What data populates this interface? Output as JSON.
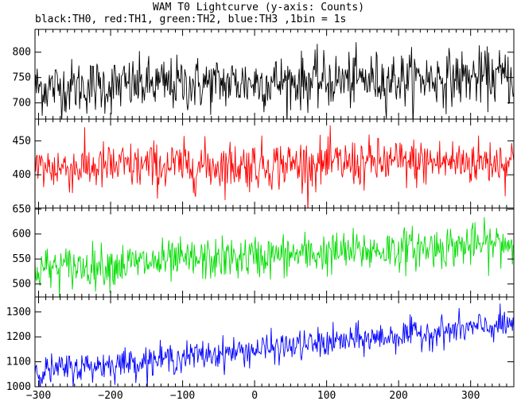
{
  "chart_data": {
    "type": "line",
    "title": "WAM T0 Lightcurve (y-axis: Counts)",
    "subtitle": "black:TH0, red:TH1, green:TH2, blue:TH3 ,1bin = 1s",
    "xlabel": "",
    "ylabel": "",
    "x_range": [
      -305,
      360
    ],
    "x_ticks": [
      -300,
      -200,
      -100,
      0,
      100,
      200,
      300
    ],
    "bin_seconds": 1,
    "grid": false,
    "panels": [
      {
        "series": "TH0",
        "color": "#000000",
        "ylim": [
          668,
          845
        ],
        "yticks": [
          700,
          750,
          800
        ],
        "trend": {
          "start": 730,
          "end": 752
        },
        "noise_sd": 27
      },
      {
        "series": "TH1",
        "color": "#ff0000",
        "ylim": [
          351,
          482
        ],
        "yticks": [
          400,
          450
        ],
        "trend": {
          "start": 410,
          "end": 420
        },
        "noise_sd": 18
      },
      {
        "series": "TH2",
        "color": "#00dd00",
        "ylim": [
          474,
          652
        ],
        "yticks": [
          500,
          550,
          600,
          650
        ],
        "trend": {
          "start": 530,
          "end": 582
        },
        "noise_sd": 21
      },
      {
        "series": "TH3",
        "color": "#0000ff",
        "ylim": [
          1000,
          1360
        ],
        "yticks": [
          1000,
          1100,
          1200,
          1300
        ],
        "trend": {
          "start": 1060,
          "end": 1250
        },
        "noise_sd": 30
      }
    ]
  }
}
